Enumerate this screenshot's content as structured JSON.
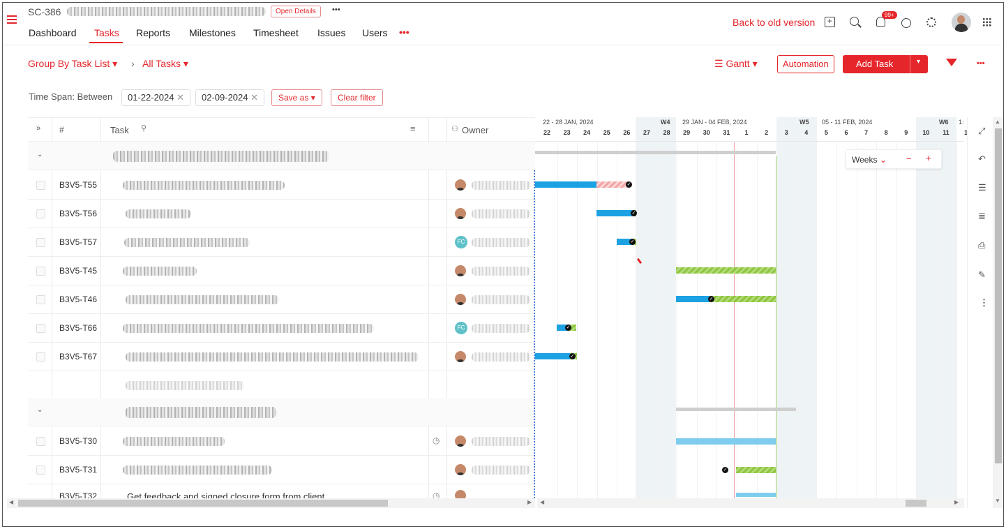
{
  "project": {
    "code": "SC-386",
    "open_details": "Open Details",
    "more": "•••"
  },
  "nav": {
    "tabs": [
      "Dashboard",
      "Tasks",
      "Reports",
      "Milestones",
      "Timesheet",
      "Issues",
      "Users"
    ],
    "more": "•••"
  },
  "header": {
    "back_to_old": "Back to old version",
    "notif_badge": "99+"
  },
  "toolbar": {
    "group_by": "Group By Task List",
    "all_tasks": "All Tasks",
    "view": "Gantt",
    "automation": "Automation",
    "add_task": "Add Task"
  },
  "filters": {
    "time_span_label": "Time Span: Between",
    "from": "01-22-2024",
    "to": "02-09-2024",
    "save_as": "Save as",
    "clear_filter": "Clear filter"
  },
  "table": {
    "col_hash": "#",
    "col_task": "Task",
    "col_owner": "Owner"
  },
  "rows": [
    {
      "id": "B3V5-T55",
      "owner": "avatar"
    },
    {
      "id": "B3V5-T56",
      "owner": "avatar"
    },
    {
      "id": "B3V5-T57",
      "owner": "FC"
    },
    {
      "id": "B3V5-T45",
      "owner": "avatar"
    },
    {
      "id": "B3V5-T46",
      "owner": "avatar"
    },
    {
      "id": "B3V5-T66",
      "owner": "FC"
    },
    {
      "id": "B3V5-T67",
      "owner": "avatar"
    },
    {
      "id": "B3V5-T30",
      "owner": "avatar"
    },
    {
      "id": "B3V5-T31",
      "owner": "avatar"
    },
    {
      "id": "B3V5-T32",
      "owner": "avatar",
      "task": "Get feedback and signed closure form from client"
    }
  ],
  "gantt": {
    "weeks": [
      {
        "label": "22 - 28 JAN, 2024"
      },
      {
        "label": "W4"
      },
      {
        "label": "29 JAN - 04 FEB, 2024"
      },
      {
        "label": "W5"
      },
      {
        "label": "05 - 11 FEB, 2024"
      },
      {
        "label": "W6"
      },
      {
        "label": "1:"
      }
    ],
    "days": [
      "22",
      "23",
      "24",
      "25",
      "26",
      "27",
      "28",
      "29",
      "30",
      "31",
      "1",
      "2",
      "3",
      "4",
      "5",
      "6",
      "7",
      "8",
      "9",
      "10",
      "11",
      "1"
    ],
    "zoom": "Weeks"
  }
}
